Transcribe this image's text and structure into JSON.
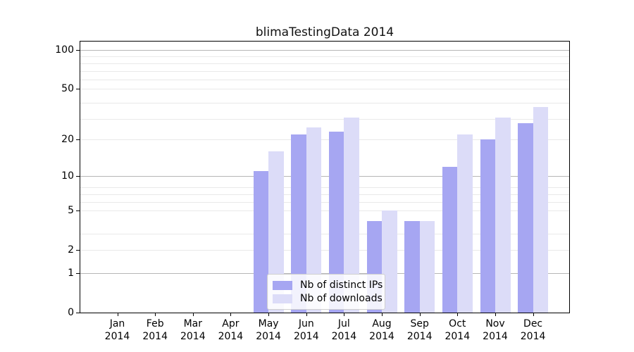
{
  "title": "blimaTestingData 2014",
  "legend": {
    "items": [
      {
        "label": "Nb of distinct IPs"
      },
      {
        "label": "Nb of downloads"
      }
    ]
  },
  "y_axis": {
    "tick_labels": [
      "0",
      "1",
      "2",
      "5",
      "10",
      "20",
      "50",
      "100"
    ],
    "emphasized_gridlines": [
      1,
      10,
      100
    ],
    "minor_gridlines": [
      3,
      6,
      7,
      8,
      29,
      39,
      59,
      69,
      79,
      89
    ],
    "scale": "log(1+value)"
  },
  "x_axis": {
    "year": "2014",
    "months": [
      "Jan",
      "Feb",
      "Mar",
      "Apr",
      "May",
      "Jun",
      "Jul",
      "Aug",
      "Sep",
      "Oct",
      "Nov",
      "Dec"
    ]
  },
  "colors": {
    "distinct_ips": "#a6a6f2",
    "downloads": "#dcdcf8",
    "grid_major": "#b6b6b6",
    "grid_minor": "#e9e9e9",
    "axis_frame": "#000000"
  },
  "chart_data": {
    "type": "bar",
    "categories": [
      "Jan 2014",
      "Feb 2014",
      "Mar 2014",
      "Apr 2014",
      "May 2014",
      "Jun 2014",
      "Jul 2014",
      "Aug 2014",
      "Sep 2014",
      "Oct 2014",
      "Nov 2014",
      "Dec 2014"
    ],
    "series": [
      {
        "name": "Nb of distinct IPs",
        "color": "#a6a6f2",
        "values": [
          0,
          0,
          0,
          0,
          11,
          22,
          23,
          4,
          4,
          12,
          20,
          27
        ]
      },
      {
        "name": "Nb of downloads",
        "color": "#dcdcf8",
        "values": [
          0,
          0,
          0,
          0,
          16,
          25,
          30,
          5,
          4,
          22,
          30,
          36
        ]
      }
    ],
    "title": "blimaTestingData 2014",
    "xlabel": "",
    "ylabel": "",
    "yscale": "log1p",
    "ylim": [
      0,
      117
    ],
    "y_ticks": [
      0,
      1,
      2,
      5,
      10,
      20,
      50,
      100
    ],
    "grid": true,
    "legend_position": "lower-center-inside"
  }
}
